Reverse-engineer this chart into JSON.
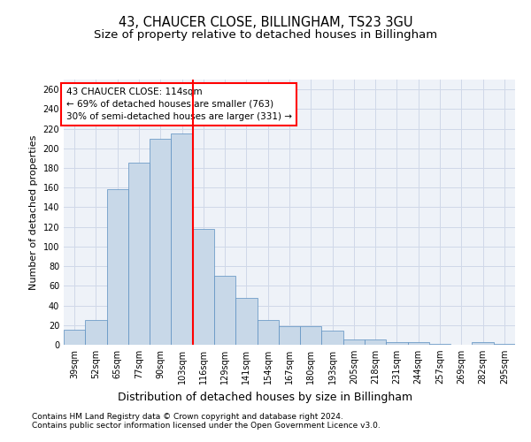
{
  "title1": "43, CHAUCER CLOSE, BILLINGHAM, TS23 3GU",
  "title2": "Size of property relative to detached houses in Billingham",
  "xlabel": "Distribution of detached houses by size in Billingham",
  "ylabel": "Number of detached properties",
  "categories": [
    "39sqm",
    "52sqm",
    "65sqm",
    "77sqm",
    "90sqm",
    "103sqm",
    "116sqm",
    "129sqm",
    "141sqm",
    "154sqm",
    "167sqm",
    "180sqm",
    "193sqm",
    "205sqm",
    "218sqm",
    "231sqm",
    "244sqm",
    "257sqm",
    "269sqm",
    "282sqm",
    "295sqm"
  ],
  "values": [
    15,
    25,
    158,
    185,
    210,
    215,
    118,
    70,
    48,
    25,
    19,
    19,
    14,
    5,
    5,
    3,
    3,
    1,
    0,
    3,
    1
  ],
  "bar_color": "#c8d8e8",
  "bar_edge_color": "#5a8fc0",
  "reference_line_x": 5.5,
  "annotation_line1": "43 CHAUCER CLOSE: 114sqm",
  "annotation_line2": "← 69% of detached houses are smaller (763)",
  "annotation_line3": "30% of semi-detached houses are larger (331) →",
  "annotation_box_color": "white",
  "annotation_border_color": "red",
  "vline_color": "red",
  "grid_color": "#d0d8e8",
  "background_color": "#eef2f8",
  "ylim": [
    0,
    270
  ],
  "yticks": [
    0,
    20,
    40,
    60,
    80,
    100,
    120,
    140,
    160,
    180,
    200,
    220,
    240,
    260
  ],
  "footer1": "Contains HM Land Registry data © Crown copyright and database right 2024.",
  "footer2": "Contains public sector information licensed under the Open Government Licence v3.0.",
  "title1_fontsize": 10.5,
  "title2_fontsize": 9.5,
  "xlabel_fontsize": 9,
  "ylabel_fontsize": 8,
  "tick_fontsize": 7,
  "annotation_fontsize": 7.5,
  "footer_fontsize": 6.5
}
